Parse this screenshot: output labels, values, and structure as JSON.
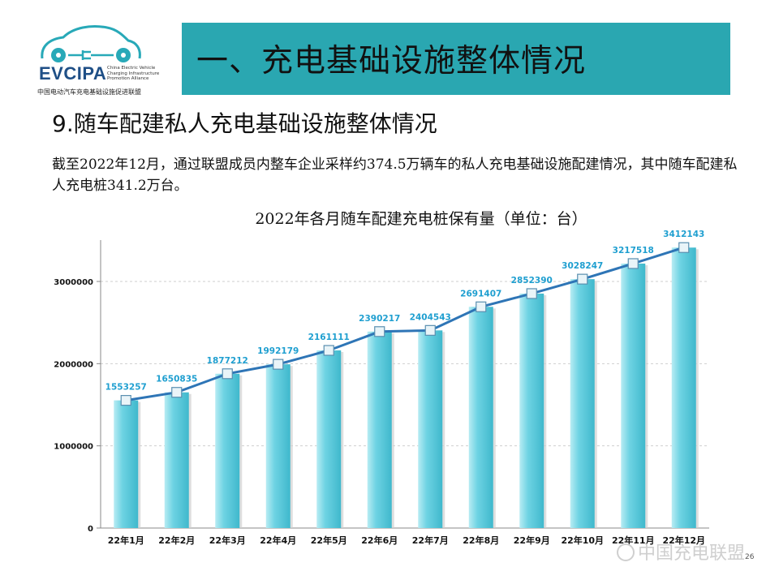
{
  "logo": {
    "brand": "EVCIPA",
    "tagline": "China Electric Vehicle Charging Infrastructure Promotion Alliance",
    "cn_name": "中国电动汽车充电基础设施促进联盟"
  },
  "banner": {
    "title": "一、充电基础设施整体情况"
  },
  "section_title": "9.随车配建私人充电基础设施整体情况",
  "intro": "截至2022年12月，通过联盟成员内整车企业采样约374.5万辆车的私人充电基础设施配建情况，其中随车配建私人充电桩341.2万台。",
  "chart_data": {
    "type": "bar",
    "title": "2022年各月随车配建充电桩保有量（单位：台）",
    "categories": [
      "22年1月",
      "22年2月",
      "22年3月",
      "22年4月",
      "22年5月",
      "22年6月",
      "22年7月",
      "22年8月",
      "22年9月",
      "22年10月",
      "22年11月",
      "22年12月"
    ],
    "values": [
      1553257,
      1650835,
      1877212,
      1992179,
      2161111,
      2390217,
      2404543,
      2691407,
      2852390,
      3028247,
      3217518,
      3412143
    ],
    "overlay": "line",
    "yticks": [
      0,
      1000000,
      2000000,
      3000000
    ],
    "ylim": [
      0,
      3500000
    ],
    "grid": true,
    "colors": {
      "bar": "#6ed3e3",
      "line": "#2e75b6",
      "label": "#1f9fd0"
    }
  },
  "watermark": "中国充电联盟",
  "page_number": "26"
}
